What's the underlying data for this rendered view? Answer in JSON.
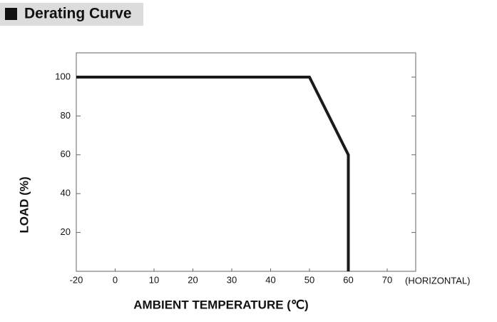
{
  "chart_data": {
    "type": "line",
    "title": "Derating Curve",
    "xlabel": "AMBIENT TEMPERATURE (℃)",
    "ylabel": "LOAD (%)",
    "x_note": "(HORIZONTAL)",
    "series": [
      {
        "x": [
          -20,
          50,
          60,
          60
        ],
        "values": [
          100,
          100,
          60,
          0
        ],
        "color": "#1a1a1a"
      }
    ],
    "xlim": [
      -20,
      77
    ],
    "xticks": [
      -20,
      0,
      10,
      20,
      30,
      40,
      50,
      60,
      70
    ],
    "ylim": [
      0,
      112.5
    ],
    "yticks": [
      20,
      40,
      60,
      80,
      100
    ],
    "grid": false
  }
}
